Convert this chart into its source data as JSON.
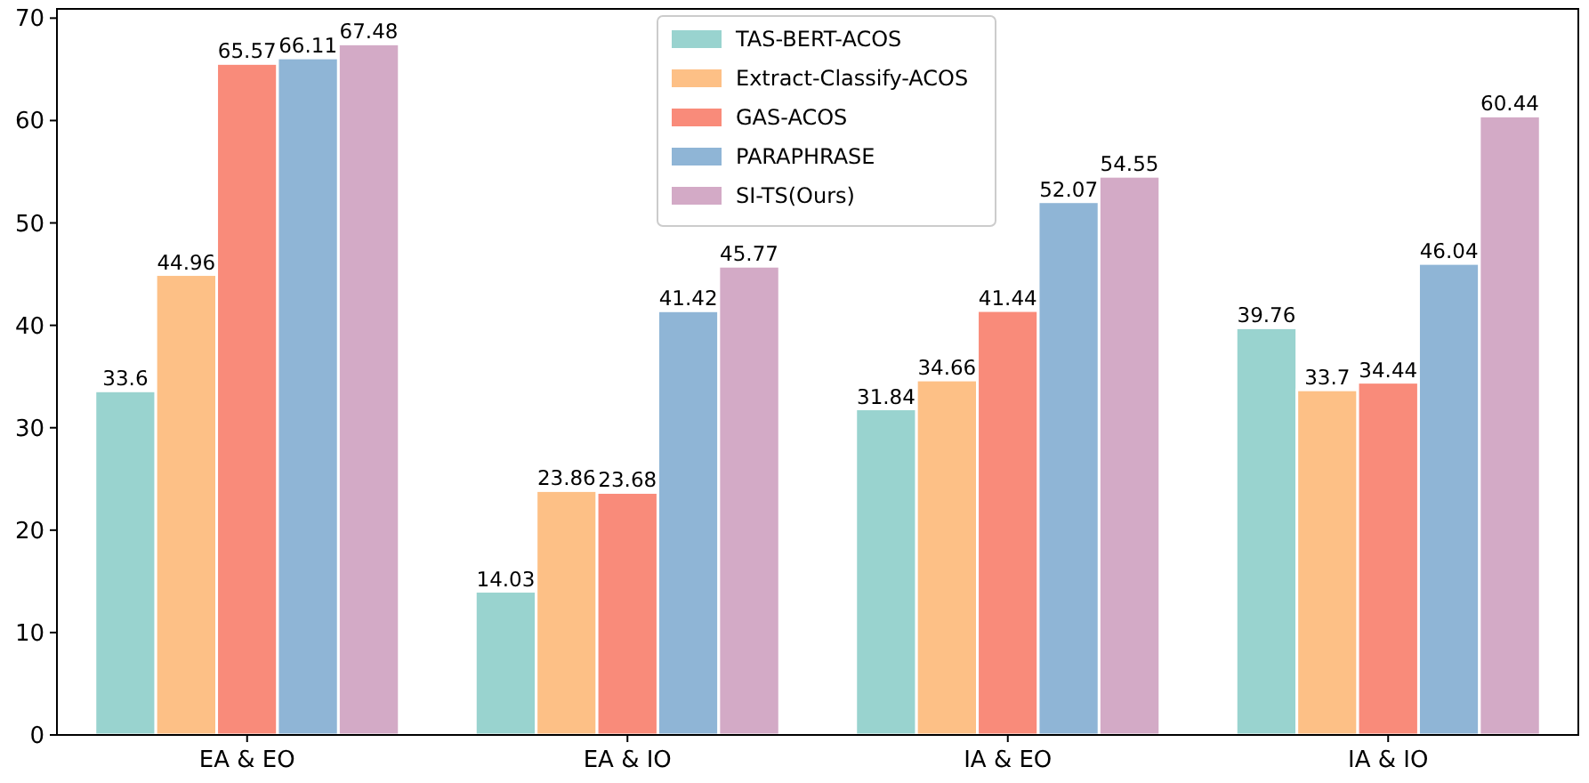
{
  "chart_data": {
    "type": "bar",
    "categories": [
      "EA & EO",
      "EA & IO",
      "IA & EO",
      "IA & IO"
    ],
    "series": [
      {
        "name": "TAS-BERT-ACOS",
        "color": "#99d3cf",
        "values": [
          33.6,
          14.03,
          31.84,
          39.76
        ]
      },
      {
        "name": "Extract-Classify-ACOS",
        "color": "#fdc086",
        "values": [
          44.96,
          23.86,
          34.66,
          33.7
        ]
      },
      {
        "name": "GAS-ACOS",
        "color": "#f98b7a",
        "values": [
          65.57,
          23.68,
          41.44,
          34.44
        ]
      },
      {
        "name": "PARAPHRASE",
        "color": "#8fb5d6",
        "values": [
          66.11,
          41.42,
          52.07,
          46.04
        ]
      },
      {
        "name": "SI-TS(Ours)",
        "color": "#d3aac6",
        "values": [
          67.48,
          45.77,
          54.55,
          60.44
        ]
      }
    ],
    "ylim": [
      0,
      70.9
    ],
    "yticks": [
      0,
      10,
      20,
      30,
      40,
      50,
      60,
      70
    ],
    "data_labels": true,
    "legend": "top",
    "grid": false
  }
}
